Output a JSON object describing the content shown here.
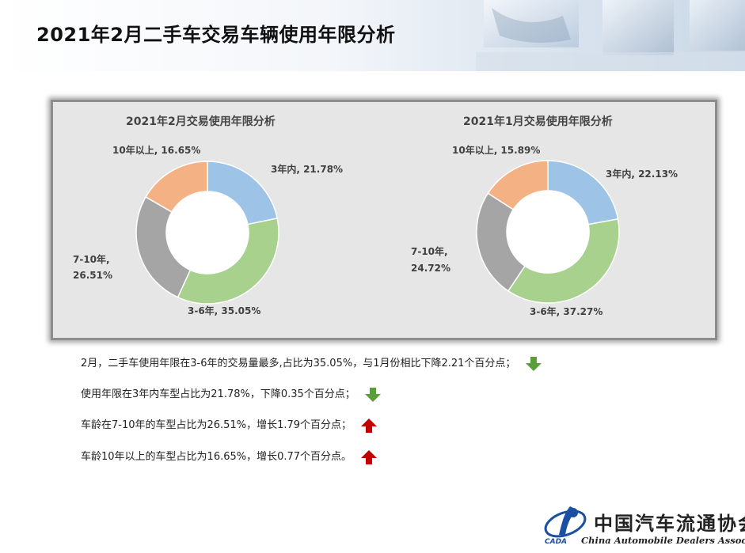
{
  "page": {
    "title": "2021年2月二手车交易车辆使用年限分析"
  },
  "chart_data": [
    {
      "type": "pie",
      "title": "2021年2月交易使用年限分析",
      "donut": true,
      "categories": [
        "3年内",
        "3-6年",
        "7-10年",
        "10年以上"
      ],
      "values": [
        21.78,
        35.05,
        26.51,
        16.65
      ],
      "colors": [
        "#9dc3e6",
        "#a9d18e",
        "#a5a5a5",
        "#f4b183"
      ],
      "labels": [
        "3年内, 21.78%",
        "3-6年, 35.05%",
        "7-10年,",
        "26.51%",
        "10年以上, 16.65%"
      ]
    },
    {
      "type": "pie",
      "title": "2021年1月交易使用年限分析",
      "donut": true,
      "categories": [
        "3年内",
        "3-6年",
        "7-10年",
        "10年以上"
      ],
      "values": [
        22.13,
        37.27,
        24.72,
        15.89
      ],
      "colors": [
        "#9dc3e6",
        "#a9d18e",
        "#a5a5a5",
        "#f4b183"
      ],
      "labels": [
        "3年内, 22.13%",
        "3-6年, 37.27%",
        "7-10年,",
        "24.72%",
        "10年以上, 15.89%"
      ]
    }
  ],
  "bullets": [
    {
      "text": "2月，二手车使用年限在3-6年的交易量最多,占比为35.05%，与1月份相比下降2.21个百分点；",
      "direction": "down",
      "color": "#5a9e3a"
    },
    {
      "text": "使用年限在3年内车型占比为21.78%，下降0.35个百分点；",
      "direction": "down",
      "color": "#5a9e3a"
    },
    {
      "text": "车龄在7-10年的车型占比为26.51%，增长1.79个百分点；",
      "direction": "up",
      "color": "#c00000"
    },
    {
      "text": "车龄10年以上的车型占比为16.65%，增长0.77个百分点。",
      "direction": "up",
      "color": "#c00000"
    }
  ],
  "logo": {
    "name_zh": "中国汽车流通协会",
    "name_en": "China Automobile Dealers Association",
    "abbr": "CADA"
  }
}
